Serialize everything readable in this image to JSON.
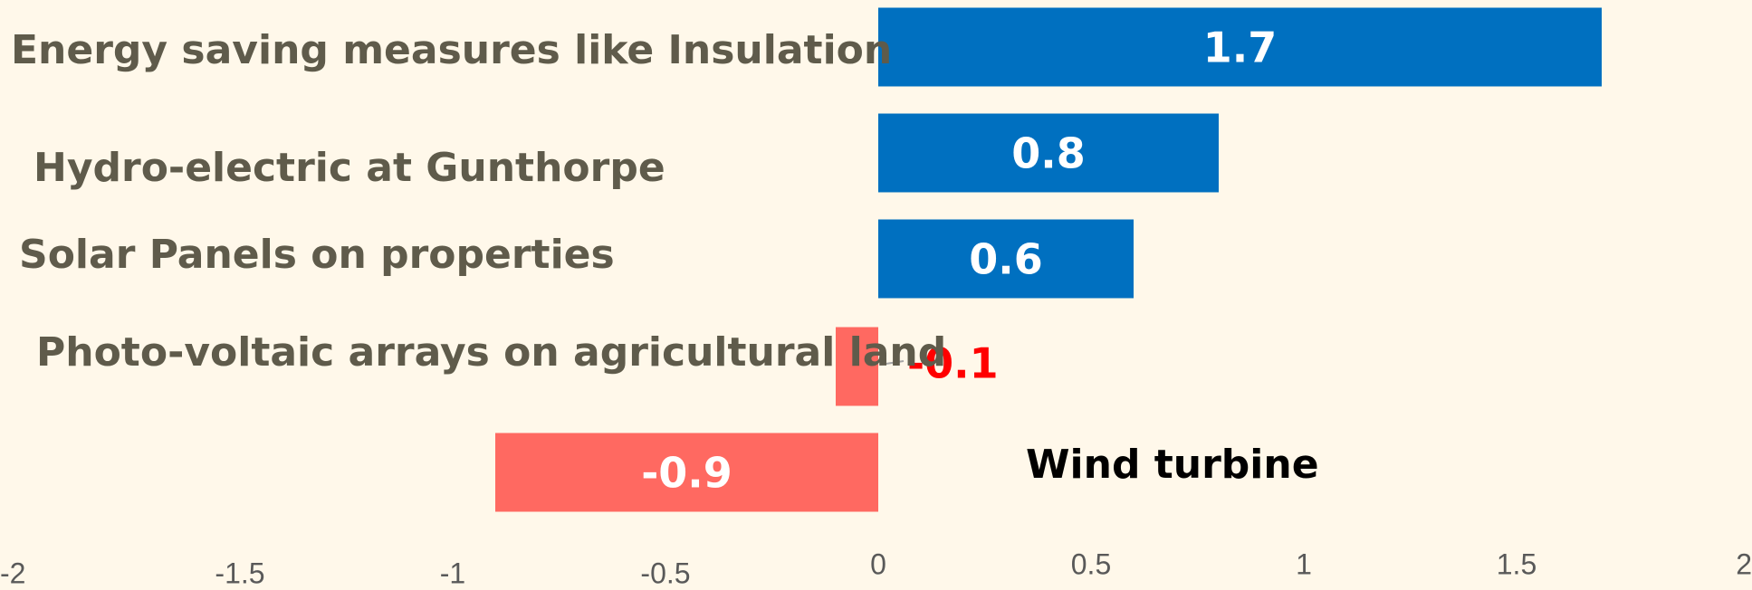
{
  "chart_data": {
    "type": "hbar",
    "categories": [
      "Energy saving measures like Insulation",
      "Hydro-electric at Gunthorpe",
      "Solar Panels on properties",
      "Photo-voltaic arrays on agricultural land",
      "Wind turbine"
    ],
    "category_colors": [
      "#5f5b4b",
      "#5f5b4b",
      "#5f5b4b",
      "#5f5b4b",
      "#000000"
    ],
    "values": [
      1.7,
      0.8,
      0.6,
      -0.1,
      -0.9
    ],
    "colors": [
      "#0070c0",
      "#0070c0",
      "#0070c0",
      "#ff6961",
      "#ff6961"
    ],
    "value_label_colors": [
      "#ffffff",
      "#ffffff",
      "#ffffff",
      "#ff0000",
      "#ffffff"
    ],
    "xlim": [
      -2,
      2
    ],
    "xticks": [
      -2,
      -1.5,
      -1,
      -0.5,
      0,
      0.5,
      1,
      1.5,
      2
    ]
  }
}
